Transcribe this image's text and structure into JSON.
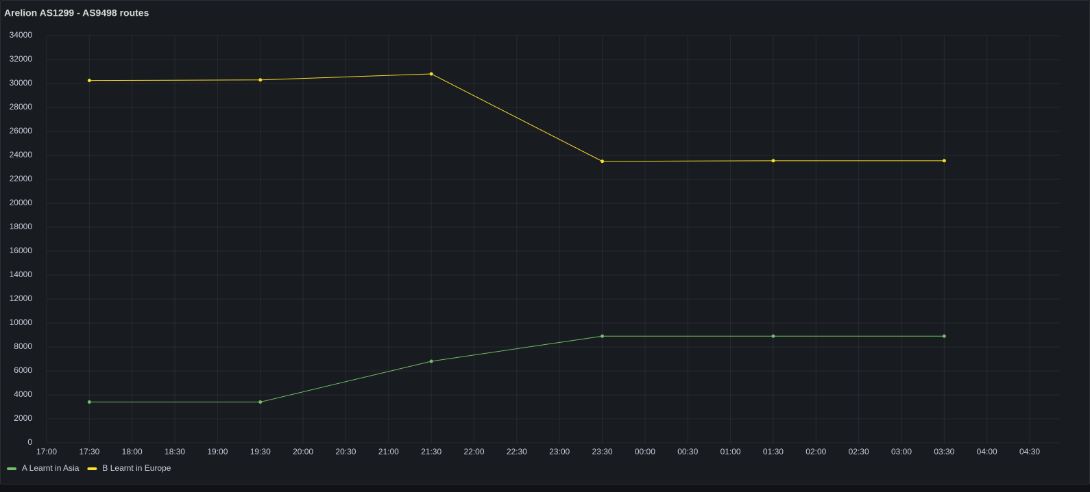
{
  "chart_data": {
    "type": "line",
    "title": "Arelion AS1299 - AS9498 routes",
    "x": [
      "17:30",
      "19:30",
      "21:30",
      "23:30",
      "01:30",
      "03:30"
    ],
    "series": [
      {
        "name": "A Learnt in Asia",
        "color": "#73bf69",
        "values": [
          3400,
          3400,
          6800,
          8900,
          8900,
          8900
        ]
      },
      {
        "name": "B Learnt in Europe",
        "color": "#fade2a",
        "values": [
          30250,
          30300,
          30800,
          23500,
          23550,
          23550
        ]
      }
    ],
    "xticks": [
      "17:00",
      "17:30",
      "18:00",
      "18:30",
      "19:00",
      "19:30",
      "20:00",
      "20:30",
      "21:00",
      "21:30",
      "22:00",
      "22:30",
      "23:00",
      "23:30",
      "00:00",
      "00:30",
      "01:00",
      "01:30",
      "02:00",
      "02:30",
      "03:00",
      "03:30",
      "04:00",
      "04:30"
    ],
    "ylim": [
      0,
      34000
    ],
    "yticks": [
      0,
      2000,
      4000,
      6000,
      8000,
      10000,
      12000,
      14000,
      16000,
      18000,
      20000,
      22000,
      24000,
      26000,
      28000,
      30000,
      32000,
      34000
    ],
    "grid": true,
    "legend": "bottom-left"
  }
}
